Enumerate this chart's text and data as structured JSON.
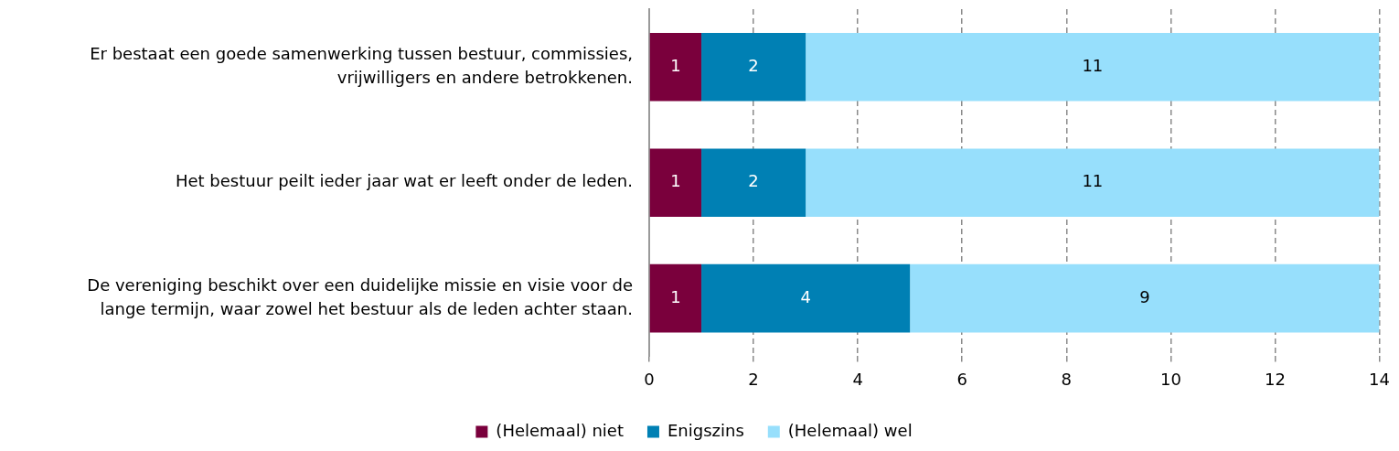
{
  "chart_data": {
    "type": "bar",
    "orientation": "horizontal",
    "stacked": true,
    "categories": [
      "Er bestaat een goede samenwerking tussen bestuur, commissies, vrijwilligers en andere betrokkenen.",
      "Het bestuur peilt ieder jaar wat er leeft onder de leden.",
      "De vereniging beschikt over een duidelijke missie en visie voor de lange termijn, waar zowel het bestuur als de leden achter staan."
    ],
    "series": [
      {
        "name": "(Helemaal) niet",
        "color": "#7a003c",
        "values": [
          1,
          1,
          1
        ]
      },
      {
        "name": "Enigszins",
        "color": "#0080b4",
        "values": [
          2,
          2,
          4
        ]
      },
      {
        "name": "(Helemaal) wel",
        "color": "#97dffc",
        "values": [
          11,
          11,
          9
        ]
      }
    ],
    "xlim": [
      0,
      14
    ],
    "xticks": [
      0,
      2,
      4,
      6,
      8,
      10,
      12,
      14
    ],
    "grid": "x",
    "legend": "bottom",
    "data_labels": true
  }
}
